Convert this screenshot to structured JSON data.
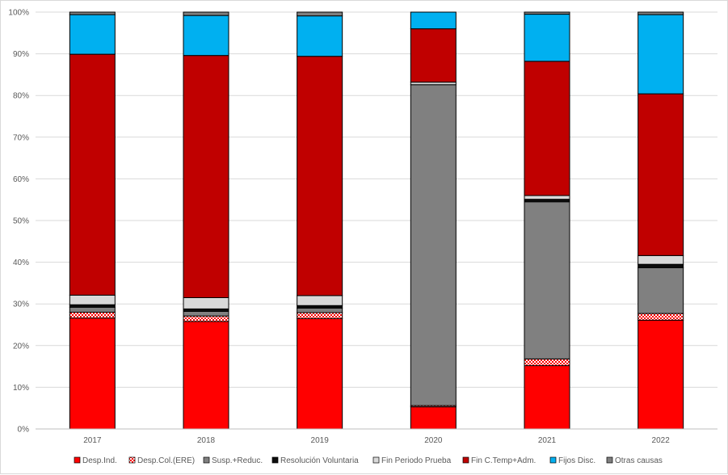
{
  "chart_data": {
    "type": "bar",
    "stacked": "percent",
    "title": "",
    "xlabel": "",
    "ylabel": "",
    "ylim": [
      0,
      100
    ],
    "y_ticks": [
      "0%",
      "10%",
      "20%",
      "30%",
      "40%",
      "50%",
      "60%",
      "70%",
      "80%",
      "90%",
      "100%"
    ],
    "categories": [
      "2017",
      "2018",
      "2019",
      "2020",
      "2021",
      "2022"
    ],
    "series": [
      {
        "name": "Desp.Ind.",
        "color": "#ff0000",
        "pattern": "solid",
        "values": [
          26.6,
          25.8,
          26.5,
          5.3,
          15.2,
          26.1
        ]
      },
      {
        "name": "Desp.Col.(ERE)",
        "color": "#ff0000",
        "pattern": "checker",
        "values": [
          1.4,
          1.3,
          1.4,
          0.3,
          1.6,
          1.6
        ]
      },
      {
        "name": "Susp.+Reduc.",
        "color": "#808080",
        "pattern": "solid",
        "values": [
          1.2,
          1.1,
          1.1,
          77.0,
          37.7,
          11.0
        ]
      },
      {
        "name": "Resolución Voluntaria",
        "color": "#0d0d0d",
        "pattern": "solid",
        "values": [
          0.6,
          0.6,
          0.6,
          0.0,
          0.6,
          0.8
        ]
      },
      {
        "name": "Fin Periodo Prueba",
        "color": "#d9d9d9",
        "pattern": "solid",
        "values": [
          2.3,
          2.7,
          2.4,
          0.6,
          0.9,
          2.1
        ]
      },
      {
        "name": "Fin C.Temp+Adm.",
        "color": "#c00000",
        "pattern": "solid",
        "values": [
          57.8,
          58.1,
          57.4,
          12.8,
          32.2,
          38.8
        ]
      },
      {
        "name": "Fijos Disc.",
        "color": "#00b0f0",
        "pattern": "solid",
        "values": [
          9.5,
          9.6,
          9.7,
          4.0,
          11.3,
          19.0
        ]
      },
      {
        "name": "Otras causas",
        "color": "#7f7f7f",
        "pattern": "solid",
        "values": [
          0.6,
          0.8,
          0.9,
          0.0,
          0.5,
          0.6
        ]
      }
    ],
    "legend_position": "bottom",
    "grid": true
  }
}
